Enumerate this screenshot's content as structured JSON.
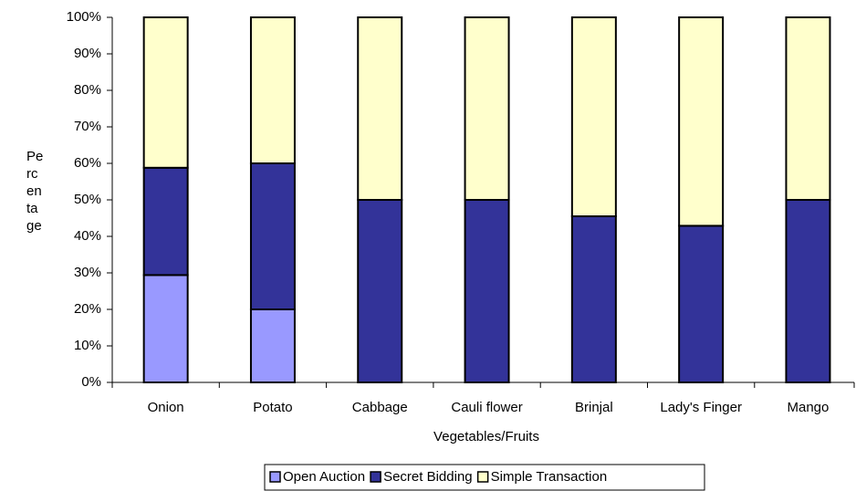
{
  "chart_data": {
    "type": "stacked_bar",
    "x_label": "Vegetables/Fruits",
    "y_label": "Percentage",
    "categories": [
      "Onion",
      "Potato",
      "Cabbage",
      "Cauli flower",
      "Brinjal",
      "Lady's Finger",
      "Mango"
    ],
    "series": [
      {
        "name": "Open Auction",
        "color": "#9999ff",
        "values": [
          29.4,
          20,
          0,
          0,
          0,
          0,
          0
        ]
      },
      {
        "name": "Secret Bidding",
        "color": "#333399",
        "values": [
          29.4,
          40,
          50,
          50,
          45.5,
          42.9,
          50
        ]
      },
      {
        "name": "Simple Transaction",
        "color": "#ffffcc",
        "values": [
          41.2,
          40,
          50,
          50,
          54.5,
          57.1,
          50
        ]
      }
    ],
    "ylim": [
      0,
      100
    ],
    "yticks": [
      {
        "value": 0,
        "label": "0%"
      },
      {
        "value": 10,
        "label": "10%"
      },
      {
        "value": 20,
        "label": "20%"
      },
      {
        "value": 30,
        "label": "30%"
      },
      {
        "value": 40,
        "label": "40%"
      },
      {
        "value": 50,
        "label": "50%"
      },
      {
        "value": 60,
        "label": "60%"
      },
      {
        "value": 70,
        "label": "70%"
      },
      {
        "value": 80,
        "label": "80%"
      },
      {
        "value": 90,
        "label": "90%"
      },
      {
        "value": 100,
        "label": "100%"
      }
    ],
    "legend": "bottom"
  }
}
